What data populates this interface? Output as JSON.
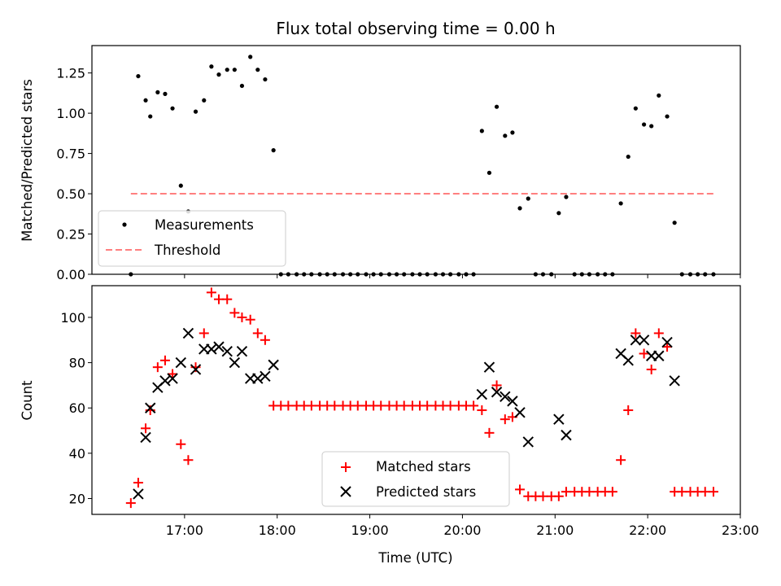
{
  "chart_data": [
    {
      "type": "scatter",
      "title": "Flux total observing time = 0.00 h",
      "xlabel": "",
      "ylabel": "Matched/Predicted stars",
      "xlim": [
        16.0,
        23.0
      ],
      "ylim": [
        0,
        1.42
      ],
      "yticks": [
        0.0,
        0.25,
        0.5,
        0.75,
        1.0,
        1.25
      ],
      "ytick_labels": [
        "0.00",
        "0.25",
        "0.50",
        "0.75",
        "1.00",
        "1.25"
      ],
      "legend_position": "lower-left",
      "series": [
        {
          "name": "Measurements",
          "marker": "dot",
          "color": "#000000",
          "x": [
            16.42,
            16.5,
            16.58,
            16.63,
            16.71,
            16.79,
            16.87,
            16.96,
            17.04,
            17.12,
            17.21,
            17.29,
            17.37,
            17.46,
            17.54,
            17.62,
            17.71,
            17.79,
            17.87,
            17.96,
            18.04,
            18.12,
            18.21,
            18.29,
            18.37,
            18.46,
            18.54,
            18.62,
            18.71,
            18.79,
            18.87,
            18.96,
            19.04,
            19.12,
            19.21,
            19.29,
            19.37,
            19.46,
            19.54,
            19.62,
            19.71,
            19.79,
            19.87,
            19.96,
            20.04,
            20.12,
            20.21,
            20.29,
            20.37,
            20.46,
            20.54,
            20.62,
            20.71,
            20.79,
            20.87,
            20.96,
            21.04,
            21.12,
            21.21,
            21.29,
            21.37,
            21.46,
            21.54,
            21.62,
            21.71,
            21.79,
            21.87,
            21.96,
            22.04,
            22.12,
            22.21,
            22.29,
            22.37,
            22.46,
            22.54,
            22.62,
            22.71
          ],
          "values": [
            0.0,
            1.23,
            1.08,
            0.98,
            1.13,
            1.12,
            1.03,
            0.55,
            0.39,
            1.01,
            1.08,
            1.29,
            1.24,
            1.27,
            1.27,
            1.17,
            1.35,
            1.27,
            1.21,
            0.77,
            0.0,
            0.0,
            0.0,
            0.0,
            0.0,
            0.0,
            0.0,
            0.0,
            0.0,
            0.0,
            0.0,
            0.0,
            0.0,
            0.0,
            0.0,
            0.0,
            0.0,
            0.0,
            0.0,
            0.0,
            0.0,
            0.0,
            0.0,
            0.0,
            0.0,
            0.0,
            0.89,
            0.63,
            1.04,
            0.86,
            0.88,
            0.41,
            0.47,
            0.0,
            0.0,
            0.0,
            0.38,
            0.48,
            0.0,
            0.0,
            0.0,
            0.0,
            0.0,
            0.0,
            0.44,
            0.73,
            1.03,
            0.93,
            0.92,
            1.11,
            0.98,
            0.32,
            0.0,
            0.0,
            0.0,
            0.0,
            0.0
          ]
        },
        {
          "name": "Threshold",
          "style": "dashed",
          "color": "#ff7f7f",
          "x": [
            16.42,
            22.71
          ],
          "values": [
            0.5,
            0.5
          ]
        }
      ]
    },
    {
      "type": "scatter",
      "title": "",
      "xlabel": "Time (UTC)",
      "ylabel": "Count",
      "xlim": [
        16.0,
        23.0
      ],
      "ylim": [
        13,
        114
      ],
      "xticks": [
        17,
        18,
        19,
        20,
        21,
        22,
        23
      ],
      "xtick_labels": [
        "17:00",
        "18:00",
        "19:00",
        "20:00",
        "21:00",
        "22:00",
        "23:00"
      ],
      "yticks": [
        20,
        40,
        60,
        80,
        100
      ],
      "ytick_labels": [
        "20",
        "40",
        "60",
        "80",
        "100"
      ],
      "legend_position": "lower-center",
      "series": [
        {
          "name": "Matched stars",
          "marker": "plus",
          "color": "#ff0000",
          "x": [
            16.42,
            16.5,
            16.58,
            16.63,
            16.71,
            16.79,
            16.87,
            16.96,
            17.04,
            17.12,
            17.21,
            17.29,
            17.37,
            17.46,
            17.54,
            17.62,
            17.71,
            17.79,
            17.87,
            17.96,
            18.04,
            18.12,
            18.21,
            18.29,
            18.37,
            18.46,
            18.54,
            18.62,
            18.71,
            18.79,
            18.87,
            18.96,
            19.04,
            19.12,
            19.21,
            19.29,
            19.37,
            19.46,
            19.54,
            19.62,
            19.71,
            19.79,
            19.87,
            19.96,
            20.04,
            20.12,
            20.21,
            20.29,
            20.37,
            20.46,
            20.54,
            20.62,
            20.71,
            20.79,
            20.87,
            20.96,
            21.04,
            21.12,
            21.21,
            21.29,
            21.37,
            21.46,
            21.54,
            21.62,
            21.71,
            21.79,
            21.87,
            21.96,
            22.04,
            22.12,
            22.21,
            22.29,
            22.37,
            22.46,
            22.54,
            22.62,
            22.71
          ],
          "values": [
            18,
            27,
            51,
            59,
            78,
            81,
            75,
            44,
            37,
            78,
            93,
            111,
            108,
            108,
            102,
            100,
            99,
            93,
            90,
            61,
            61,
            61,
            61,
            61,
            61,
            61,
            61,
            61,
            61,
            61,
            61,
            61,
            61,
            61,
            61,
            61,
            61,
            61,
            61,
            61,
            61,
            61,
            61,
            61,
            61,
            61,
            59,
            49,
            70,
            55,
            56,
            24,
            21,
            21,
            21,
            21,
            21,
            23,
            23,
            23,
            23,
            23,
            23,
            23,
            37,
            59,
            93,
            84,
            77,
            93,
            87,
            23,
            23,
            23,
            23,
            23,
            23
          ]
        },
        {
          "name": "Predicted stars",
          "marker": "x",
          "color": "#000000",
          "x": [
            16.5,
            16.58,
            16.63,
            16.71,
            16.79,
            16.87,
            16.96,
            17.04,
            17.12,
            17.21,
            17.29,
            17.37,
            17.46,
            17.54,
            17.62,
            17.71,
            17.79,
            17.87,
            17.96,
            20.21,
            20.29,
            20.37,
            20.46,
            20.54,
            20.62,
            20.71,
            21.04,
            21.12,
            21.71,
            21.79,
            21.87,
            21.96,
            22.04,
            22.12,
            22.21,
            22.29
          ],
          "values": [
            22,
            47,
            60,
            69,
            72,
            73,
            80,
            93,
            77,
            86,
            86,
            87,
            85,
            80,
            85,
            73,
            73,
            74,
            79,
            66,
            78,
            67,
            65,
            63,
            58,
            45,
            55,
            48,
            84,
            81,
            90,
            90,
            83,
            83,
            89,
            72
          ]
        }
      ]
    }
  ]
}
